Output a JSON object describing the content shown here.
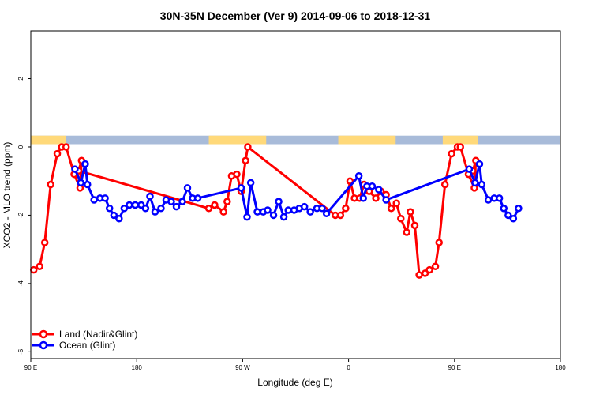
{
  "chart_data": {
    "type": "line",
    "title": "30N-35N December (Ver 9)   2014-09-06 to 2018-12-31",
    "xlabel": "Longitude (deg E)",
    "ylabel": "XCO2 - MLO trend (ppm)",
    "xlim": [
      90,
      450
    ],
    "ylim": [
      -6.2,
      3.4
    ],
    "x_ticks": [
      {
        "value": 90,
        "label": "90 E"
      },
      {
        "value": 162,
        "label": "180"
      },
      {
        "value": 234,
        "label": "90 W"
      },
      {
        "value": 306,
        "label": "0"
      },
      {
        "value": 378,
        "label": "90 E"
      },
      {
        "value": 450,
        "label": "180"
      }
    ],
    "y_ticks": [
      {
        "value": 2,
        "label": "2"
      },
      {
        "value": 0,
        "label": "0"
      },
      {
        "value": -2,
        "label": "-2"
      },
      {
        "value": -4,
        "label": "-4"
      },
      {
        "value": -6,
        "label": "-6"
      }
    ],
    "surface_band": {
      "y_bottom": 0.08,
      "y_top": 0.33,
      "land_color": "#FFD97A",
      "ocean_color": "#A8BBD9",
      "land_ranges": [
        [
          90,
          114
        ],
        [
          211,
          250
        ],
        [
          299,
          338
        ],
        [
          370,
          394
        ]
      ]
    },
    "series": [
      {
        "name": "Land (Nadir&Glint)",
        "color": "#FF0000",
        "points": [
          [
            92,
            -3.6
          ],
          [
            96,
            -3.5
          ],
          [
            99.5,
            -2.8
          ],
          [
            103.5,
            -1.1
          ],
          [
            108,
            -0.2
          ],
          [
            111,
            0.0
          ],
          [
            114,
            0.0
          ],
          [
            119.5,
            -0.8
          ],
          [
            123.5,
            -1.2
          ],
          [
            124.5,
            -0.4
          ],
          [
            122.5,
            -0.7
          ],
          [
            211,
            -1.8
          ],
          [
            215,
            -1.7
          ],
          [
            221,
            -1.9
          ],
          [
            223.5,
            -1.6
          ],
          [
            226.5,
            -0.85
          ],
          [
            230,
            -0.8
          ],
          [
            233,
            -1.3
          ],
          [
            236,
            -0.4
          ],
          [
            237.5,
            0.0
          ],
          [
            297,
            -2.0
          ],
          [
            300.5,
            -2.0
          ],
          [
            304,
            -1.8
          ],
          [
            307,
            -1.0
          ],
          [
            310,
            -1.5
          ],
          [
            313.5,
            -1.5
          ],
          [
            316.5,
            -1.1
          ],
          [
            320,
            -1.3
          ],
          [
            324.5,
            -1.5
          ],
          [
            328,
            -1.3
          ],
          [
            331.5,
            -1.4
          ],
          [
            335,
            -1.8
          ],
          [
            338.5,
            -1.65
          ],
          [
            341.5,
            -2.1
          ],
          [
            345.5,
            -2.5
          ],
          [
            348,
            -1.9
          ],
          [
            351,
            -2.3
          ],
          [
            354,
            -3.75
          ],
          [
            358,
            -3.7
          ],
          [
            361,
            -3.6
          ],
          [
            365,
            -3.5
          ],
          [
            367.5,
            -2.8
          ],
          [
            371.5,
            -1.1
          ],
          [
            376,
            -0.2
          ],
          [
            380,
            0.0
          ],
          [
            382,
            0.0
          ],
          [
            387.5,
            -0.8
          ],
          [
            391.5,
            -1.2
          ],
          [
            392.5,
            -0.4
          ],
          [
            390.5,
            -0.7
          ]
        ]
      },
      {
        "name": "Ocean (Glint)",
        "color": "#0000FF",
        "points": [
          [
            120,
            -0.65
          ],
          [
            124,
            -1.05
          ],
          [
            127,
            -0.5
          ],
          [
            128.5,
            -1.1
          ],
          [
            133,
            -1.55
          ],
          [
            137,
            -1.5
          ],
          [
            140.5,
            -1.5
          ],
          [
            143.5,
            -1.8
          ],
          [
            146.5,
            -2.0
          ],
          [
            150,
            -2.1
          ],
          [
            153.5,
            -1.8
          ],
          [
            157,
            -1.7
          ],
          [
            161,
            -1.7
          ],
          [
            165,
            -1.7
          ],
          [
            168,
            -1.8
          ],
          [
            171,
            -1.45
          ],
          [
            174.5,
            -1.9
          ],
          [
            178.5,
            -1.8
          ],
          [
            182,
            -1.55
          ],
          [
            185.5,
            -1.6
          ],
          [
            189,
            -1.75
          ],
          [
            193,
            -1.6
          ],
          [
            196.5,
            -1.2
          ],
          [
            200,
            -1.5
          ],
          [
            203.5,
            -1.5
          ],
          [
            233,
            -1.2
          ],
          [
            237,
            -2.05
          ],
          [
            239.5,
            -1.05
          ],
          [
            244,
            -1.9
          ],
          [
            248,
            -1.9
          ],
          [
            251,
            -1.85
          ],
          [
            255,
            -2.0
          ],
          [
            258.5,
            -1.6
          ],
          [
            262,
            -2.05
          ],
          [
            265,
            -1.85
          ],
          [
            269,
            -1.85
          ],
          [
            272.5,
            -1.8
          ],
          [
            276,
            -1.75
          ],
          [
            280,
            -1.9
          ],
          [
            284.5,
            -1.8
          ],
          [
            288,
            -1.8
          ],
          [
            291,
            -1.95
          ],
          [
            313,
            -0.85
          ],
          [
            316,
            -1.5
          ],
          [
            318.5,
            -1.15
          ],
          [
            322,
            -1.15
          ],
          [
            326.5,
            -1.25
          ],
          [
            331.5,
            -1.55
          ],
          [
            388,
            -0.65
          ],
          [
            392,
            -1.05
          ],
          [
            395,
            -0.5
          ],
          [
            396.5,
            -1.1
          ],
          [
            401,
            -1.55
          ],
          [
            405,
            -1.5
          ],
          [
            408.5,
            -1.5
          ],
          [
            411.5,
            -1.8
          ],
          [
            414.5,
            -2.0
          ],
          [
            418,
            -2.1
          ],
          [
            421.5,
            -1.8
          ]
        ]
      }
    ],
    "legend": {
      "position": "bottom-left",
      "entries": [
        "Land (Nadir&Glint)",
        "Ocean (Glint)"
      ]
    },
    "grid": false
  }
}
